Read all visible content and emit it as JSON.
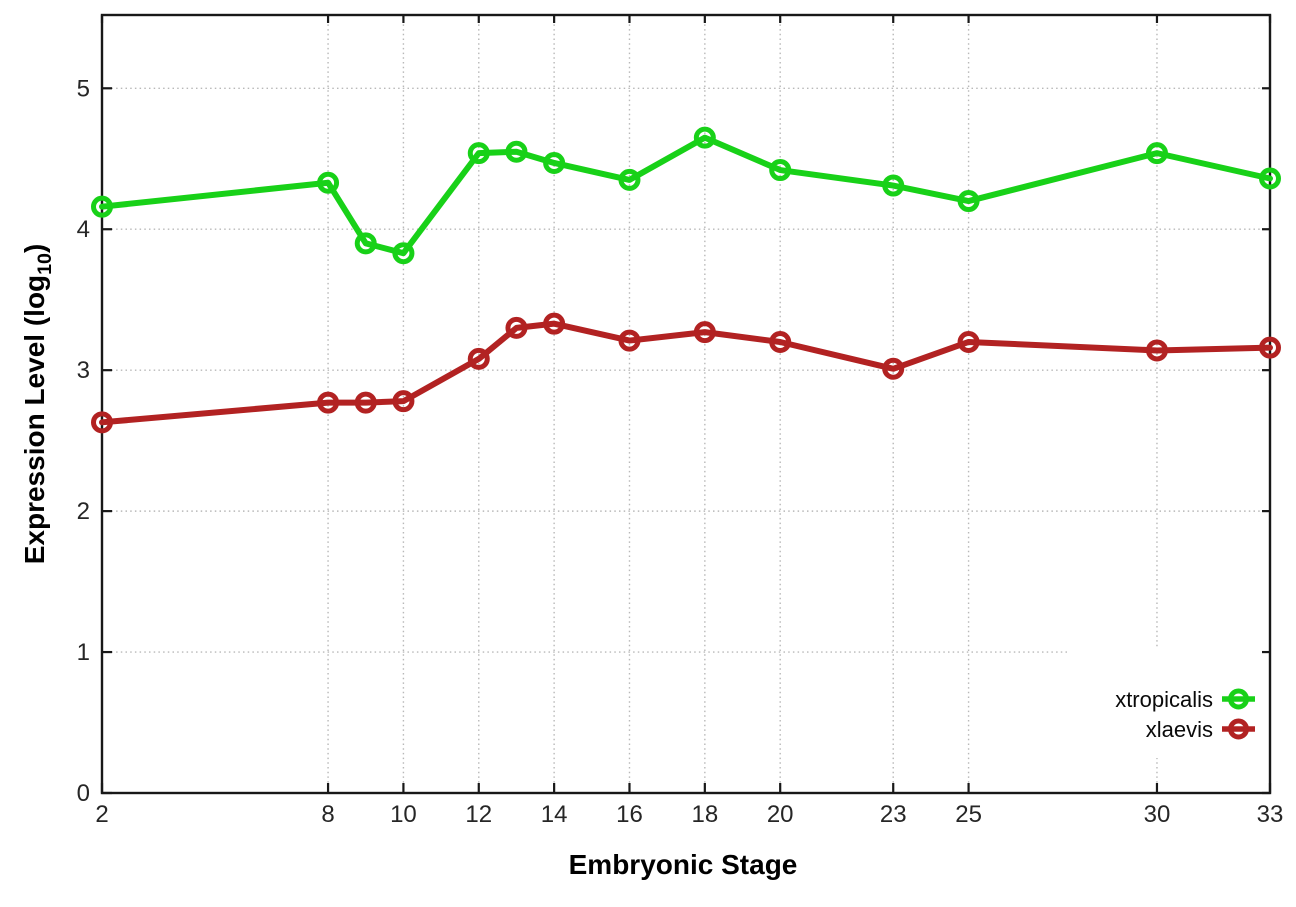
{
  "figure": {
    "background_color": "#ffffff",
    "border_color": "#181818",
    "grid_color": "#b8b8b8",
    "tick_label_color": "#262626"
  },
  "chart_data": {
    "type": "line",
    "title": "",
    "xlabel": "Embryonic Stage",
    "ylabel": "Expression Level (log10)",
    "ylabel_main": "Expression Level (log",
    "ylabel_sub": "10",
    "ylabel_suffix": ")",
    "x": [
      2,
      8,
      9,
      10,
      12,
      13,
      14,
      16,
      18,
      20,
      23,
      25,
      30,
      33
    ],
    "series": [
      {
        "name": "xtropicalis",
        "color": "#18d118",
        "marker": "open-circle",
        "values": [
          4.16,
          4.33,
          3.9,
          3.83,
          4.54,
          4.55,
          4.47,
          4.35,
          4.65,
          4.42,
          4.31,
          4.2,
          4.54,
          4.36
        ]
      },
      {
        "name": "xlaevis",
        "color": "#b22222",
        "marker": "open-circle",
        "values": [
          2.63,
          2.77,
          2.77,
          2.78,
          3.08,
          3.3,
          3.33,
          3.21,
          3.27,
          3.2,
          3.01,
          3.2,
          3.14,
          3.16
        ]
      }
    ],
    "x_ticks": [
      2,
      8,
      10,
      12,
      14,
      16,
      18,
      20,
      23,
      25,
      30,
      33
    ],
    "y_ticks": [
      0,
      1,
      2,
      3,
      4,
      5
    ],
    "xlim": [
      2,
      33
    ],
    "ylim": [
      0,
      5.52
    ],
    "grid": true,
    "legend_position": "inside-bottom-right"
  }
}
